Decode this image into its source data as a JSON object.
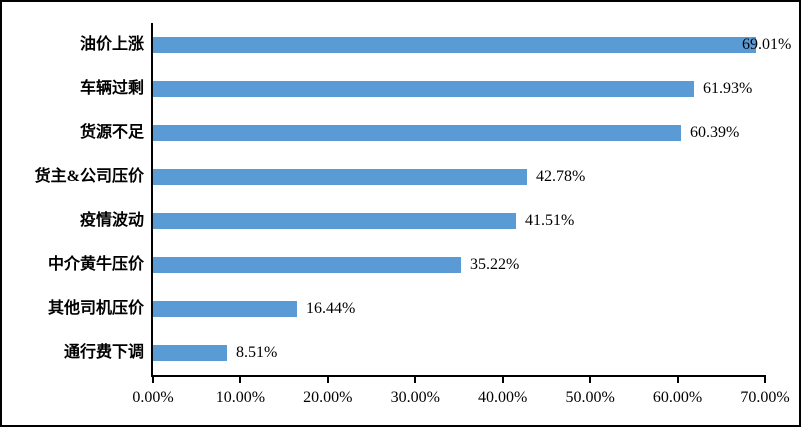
{
  "window": {
    "background_color": "#FFFFFF",
    "border_color": "#000000"
  },
  "chart_data": {
    "type": "bar",
    "orientation": "horizontal",
    "categories": [
      "油价上涨",
      "车辆过剩",
      "货源不足",
      "货主&公司压价",
      "疫情波动",
      "中介黄牛压价",
      "其他司机压价",
      "通行费下调"
    ],
    "values": [
      69.01,
      61.93,
      60.39,
      42.78,
      41.51,
      35.22,
      16.44,
      8.51
    ],
    "value_labels": [
      "69.01%",
      "61.93%",
      "60.39%",
      "42.78%",
      "41.51%",
      "35.22%",
      "16.44%",
      "8.51%"
    ],
    "x_tick_labels": [
      "0.00%",
      "10.00%",
      "20.00%",
      "30.00%",
      "40.00%",
      "50.00%",
      "60.00%",
      "70.00%"
    ],
    "xlim": [
      0,
      70
    ],
    "bar_color": "#5B9BD5",
    "axis_color": "#000000",
    "text_color": "#000000",
    "grid": "off",
    "legend": "none"
  }
}
